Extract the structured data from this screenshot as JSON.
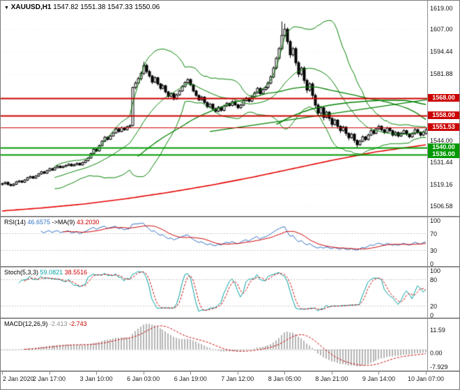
{
  "main": {
    "menu_icon": "▼",
    "symbol_label": "XAUUSD,H1",
    "ohlc_text": "1547.82 1551.38 1547.33 1550.06",
    "ylim": [
      1502,
      1622
    ],
    "y_ticks": [
      "1619.00",
      "1607.00",
      "1594.44",
      "1581.88",
      "1544.00",
      "1531.44",
      "1519.16",
      "1506.58"
    ],
    "price_lines": [
      {
        "label": "1568.00",
        "value": 1568.0,
        "color": "#cc0000",
        "width": 2
      },
      {
        "label": "1558.00",
        "value": 1558.0,
        "color": "#cc0000",
        "width": 2
      },
      {
        "label": "1551.53",
        "value": 1551.53,
        "color": "#cc0000",
        "width": 1
      },
      {
        "label": "1540.00",
        "value": 1540.0,
        "color": "#009900",
        "width": 2
      },
      {
        "label": "1536.00",
        "value": 1536.0,
        "color": "#009900",
        "width": 2
      }
    ]
  },
  "panels": {
    "rsi": {
      "label": "RSI(14)",
      "value": "46.6575",
      "ma_label": "->MA(9)",
      "ma_value": "43.2030",
      "axis": [
        "100",
        "70",
        "30",
        "0"
      ],
      "levels": [
        70,
        30
      ],
      "range": [
        0,
        100
      ]
    },
    "stoch": {
      "label": "Stoch(5,3,3)",
      "k_value": "59.0821",
      "d_value": "38.5516",
      "axis": [
        "100",
        "80",
        "20",
        "0"
      ],
      "levels": [
        80,
        20
      ],
      "range": [
        0,
        100
      ]
    },
    "macd": {
      "label": "MACD(12,26,9)",
      "value": "-2.413",
      "signal_value": "-2.743",
      "axis": [
        "11.59",
        "0.00",
        "-7.929"
      ]
    }
  },
  "time_axis": {
    "labels": [
      "2 Jan 2020",
      "2 Jan 17:00",
      "3 Jan 10:00",
      "6 Jan 03:00",
      "6 Jan 19:00",
      "7 Jan 12:00",
      "8 Jan 05:00",
      "8 Jan 21:00",
      "9 Jan 14:00",
      "10 Jan 07:00"
    ],
    "bars_per_tick": 17
  },
  "colors": {
    "bull": "#ffffff",
    "bear": "#000000",
    "wick": "#000000",
    "band": "#008000",
    "rsi": "#2f6fc2",
    "rsi_ma": "#cc0000",
    "stoch_k": "#00a0a0",
    "stoch_d": "#cc0000",
    "macd_hist": "#b4b4b4",
    "macd_signal": "#cc0000",
    "grid": "#ededed",
    "level": "#c8c8c8"
  },
  "chart_data": {
    "type": "candlestick",
    "symbol": "XAUUSD",
    "timeframe": "H1",
    "title": "XAUUSD,H1 1547.82 1551.38 1547.33 1550.06",
    "ylim": [
      1502,
      1622
    ],
    "current_bar": {
      "open": 1547.82,
      "high": 1551.38,
      "low": 1547.33,
      "close": 1550.06
    },
    "candles": [
      [
        1519.0,
        1520.1,
        1518.4,
        1519.5
      ],
      [
        1519.5,
        1520.8,
        1518.9,
        1520.2
      ],
      [
        1520.2,
        1520.8,
        1518.4,
        1519.0
      ],
      [
        1519.0,
        1519.6,
        1517.8,
        1518.4
      ],
      [
        1518.4,
        1519.8,
        1517.9,
        1519.2
      ],
      [
        1519.2,
        1521.1,
        1518.7,
        1520.5
      ],
      [
        1520.5,
        1521.6,
        1520.0,
        1521.0
      ],
      [
        1521.0,
        1521.5,
        1519.8,
        1520.3
      ],
      [
        1520.3,
        1522.1,
        1519.9,
        1521.5
      ],
      [
        1521.5,
        1523.4,
        1521.0,
        1522.8
      ],
      [
        1522.8,
        1524.1,
        1522.3,
        1523.5
      ],
      [
        1523.5,
        1524.0,
        1522.1,
        1522.6
      ],
      [
        1522.6,
        1524.4,
        1522.2,
        1523.8
      ],
      [
        1523.8,
        1525.6,
        1523.3,
        1525.0
      ],
      [
        1525.0,
        1526.8,
        1524.5,
        1526.2
      ],
      [
        1526.2,
        1526.7,
        1524.9,
        1525.4
      ],
      [
        1525.4,
        1527.4,
        1525.0,
        1526.8
      ],
      [
        1526.8,
        1528.6,
        1526.3,
        1528.0
      ],
      [
        1528.0,
        1528.5,
        1526.7,
        1527.2
      ],
      [
        1527.2,
        1529.1,
        1526.8,
        1528.5
      ],
      [
        1528.5,
        1530.0,
        1528.1,
        1529.4
      ],
      [
        1529.4,
        1529.9,
        1528.1,
        1528.6
      ],
      [
        1528.6,
        1529.8,
        1528.2,
        1529.2
      ],
      [
        1529.2,
        1530.4,
        1528.8,
        1529.8
      ],
      [
        1529.8,
        1531.1,
        1529.4,
        1530.5
      ],
      [
        1530.5,
        1531.0,
        1529.1,
        1529.6
      ],
      [
        1529.6,
        1530.8,
        1529.2,
        1530.2
      ],
      [
        1530.2,
        1531.6,
        1529.8,
        1531.0
      ],
      [
        1531.0,
        1531.5,
        1529.6,
        1530.1
      ],
      [
        1530.1,
        1532.0,
        1529.7,
        1531.4
      ],
      [
        1531.4,
        1533.1,
        1531.0,
        1532.5
      ],
      [
        1532.5,
        1534.6,
        1532.1,
        1534.0
      ],
      [
        1534.0,
        1537.1,
        1533.6,
        1536.5
      ],
      [
        1536.5,
        1539.6,
        1536.1,
        1539.0
      ],
      [
        1539.0,
        1539.6,
        1537.4,
        1538.0
      ],
      [
        1538.0,
        1541.7,
        1537.6,
        1541.0
      ],
      [
        1541.0,
        1544.2,
        1540.6,
        1543.5
      ],
      [
        1543.5,
        1546.5,
        1543.1,
        1545.8
      ],
      [
        1545.8,
        1546.3,
        1543.9,
        1544.6
      ],
      [
        1544.6,
        1547.2,
        1544.2,
        1546.5
      ],
      [
        1546.5,
        1548.9,
        1546.1,
        1548.2
      ],
      [
        1548.2,
        1551.2,
        1547.8,
        1550.5
      ],
      [
        1550.5,
        1551.0,
        1548.4,
        1549.0
      ],
      [
        1549.0,
        1551.9,
        1548.6,
        1551.2
      ],
      [
        1551.2,
        1551.7,
        1549.4,
        1550.0
      ],
      [
        1550.0,
        1552.4,
        1549.6,
        1551.8
      ],
      [
        1551.8,
        1553.1,
        1551.3,
        1552.4
      ],
      [
        1552.4,
        1574.5,
        1551.9,
        1574.0
      ],
      [
        1574.0,
        1577.6,
        1573.0,
        1576.5
      ],
      [
        1576.5,
        1580.1,
        1575.5,
        1579.0
      ],
      [
        1579.0,
        1583.1,
        1578.0,
        1582.0
      ],
      [
        1582.0,
        1588.6,
        1581.0,
        1586.5
      ],
      [
        1586.5,
        1587.5,
        1581.9,
        1583.0
      ],
      [
        1583.0,
        1584.0,
        1579.4,
        1580.5
      ],
      [
        1580.5,
        1581.1,
        1576.0,
        1577.0
      ],
      [
        1577.0,
        1580.4,
        1576.4,
        1579.5
      ],
      [
        1579.5,
        1580.1,
        1575.0,
        1576.0
      ],
      [
        1576.0,
        1576.6,
        1572.5,
        1573.5
      ],
      [
        1573.5,
        1575.9,
        1572.9,
        1575.0
      ],
      [
        1575.0,
        1575.6,
        1570.6,
        1571.5
      ],
      [
        1571.5,
        1572.1,
        1568.1,
        1569.0
      ],
      [
        1569.0,
        1571.3,
        1568.4,
        1570.5
      ],
      [
        1570.5,
        1571.1,
        1566.6,
        1567.5
      ],
      [
        1567.5,
        1570.6,
        1567.0,
        1569.8
      ],
      [
        1569.8,
        1572.8,
        1569.2,
        1572.0
      ],
      [
        1572.0,
        1575.3,
        1571.5,
        1574.5
      ],
      [
        1574.5,
        1577.6,
        1574.0,
        1576.8
      ],
      [
        1576.8,
        1579.3,
        1576.2,
        1578.5
      ],
      [
        1578.5,
        1579.1,
        1574.7,
        1575.5
      ],
      [
        1575.5,
        1576.1,
        1571.2,
        1572.0
      ],
      [
        1572.0,
        1572.6,
        1568.7,
        1569.5
      ],
      [
        1569.5,
        1570.1,
        1566.2,
        1567.0
      ],
      [
        1567.0,
        1569.3,
        1566.4,
        1568.5
      ],
      [
        1568.5,
        1569.1,
        1564.7,
        1565.5
      ],
      [
        1565.5,
        1566.1,
        1562.2,
        1563.0
      ],
      [
        1563.0,
        1565.3,
        1562.4,
        1564.5
      ],
      [
        1564.5,
        1565.1,
        1561.2,
        1562.0
      ],
      [
        1562.0,
        1562.6,
        1559.7,
        1560.5
      ],
      [
        1560.5,
        1563.6,
        1559.9,
        1562.8
      ],
      [
        1562.8,
        1563.4,
        1560.2,
        1561.0
      ],
      [
        1561.0,
        1564.3,
        1560.4,
        1563.5
      ],
      [
        1563.5,
        1565.8,
        1563.0,
        1565.0
      ],
      [
        1565.0,
        1565.6,
        1563.0,
        1563.8
      ],
      [
        1563.8,
        1566.8,
        1563.2,
        1566.0
      ],
      [
        1566.0,
        1566.6,
        1563.4,
        1564.2
      ],
      [
        1564.2,
        1564.8,
        1561.7,
        1562.5
      ],
      [
        1562.5,
        1564.8,
        1561.9,
        1564.0
      ],
      [
        1564.0,
        1567.3,
        1563.4,
        1566.5
      ],
      [
        1566.5,
        1568.8,
        1566.0,
        1568.0
      ],
      [
        1568.0,
        1568.6,
        1565.4,
        1566.2
      ],
      [
        1566.2,
        1569.6,
        1565.6,
        1568.8
      ],
      [
        1568.8,
        1571.8,
        1568.2,
        1571.0
      ],
      [
        1571.0,
        1574.3,
        1570.4,
        1573.5
      ],
      [
        1573.5,
        1574.1,
        1569.7,
        1570.5
      ],
      [
        1570.5,
        1573.6,
        1569.9,
        1572.8
      ],
      [
        1572.8,
        1574.8,
        1572.2,
        1574.0
      ],
      [
        1574.0,
        1577.5,
        1573.2,
        1576.5
      ],
      [
        1576.5,
        1581.0,
        1575.7,
        1580.0
      ],
      [
        1580.0,
        1586.0,
        1579.2,
        1585.0
      ],
      [
        1585.0,
        1591.5,
        1584.2,
        1590.5
      ],
      [
        1590.5,
        1597.0,
        1589.7,
        1596.0
      ],
      [
        1596.0,
        1611.4,
        1595.2,
        1603.5
      ],
      [
        1603.5,
        1610.2,
        1602.0,
        1607.0
      ],
      [
        1607.0,
        1608.0,
        1598.5,
        1600.0
      ],
      [
        1600.0,
        1601.0,
        1590.8,
        1592.5
      ],
      [
        1592.5,
        1597.0,
        1591.5,
        1596.0
      ],
      [
        1596.0,
        1597.0,
        1586.3,
        1588.0
      ],
      [
        1588.0,
        1589.0,
        1579.8,
        1581.5
      ],
      [
        1581.5,
        1586.0,
        1580.5,
        1585.0
      ],
      [
        1585.0,
        1586.0,
        1576.3,
        1578.0
      ],
      [
        1578.0,
        1579.0,
        1570.8,
        1572.5
      ],
      [
        1572.5,
        1577.0,
        1571.5,
        1576.0
      ],
      [
        1576.0,
        1577.0,
        1567.8,
        1569.5
      ],
      [
        1569.5,
        1570.5,
        1562.3,
        1564.0
      ],
      [
        1564.0,
        1565.0,
        1557.8,
        1559.5
      ],
      [
        1559.5,
        1563.5,
        1558.5,
        1562.5
      ],
      [
        1562.5,
        1563.1,
        1555.3,
        1557.0
      ],
      [
        1557.0,
        1560.9,
        1556.4,
        1560.0
      ],
      [
        1560.0,
        1560.6,
        1555.0,
        1556.5
      ],
      [
        1556.5,
        1557.1,
        1551.6,
        1553.0
      ],
      [
        1553.0,
        1556.4,
        1552.4,
        1555.5
      ],
      [
        1555.5,
        1556.1,
        1550.6,
        1552.0
      ],
      [
        1552.0,
        1552.6,
        1548.1,
        1549.5
      ],
      [
        1549.5,
        1552.4,
        1548.9,
        1551.5
      ],
      [
        1551.5,
        1552.1,
        1546.6,
        1548.0
      ],
      [
        1548.0,
        1548.6,
        1544.1,
        1545.5
      ],
      [
        1545.5,
        1548.4,
        1544.9,
        1547.5
      ],
      [
        1547.5,
        1548.1,
        1542.6,
        1544.0
      ],
      [
        1544.0,
        1544.6,
        1539.9,
        1541.5
      ],
      [
        1541.5,
        1544.4,
        1540.9,
        1543.5
      ],
      [
        1543.5,
        1546.9,
        1542.9,
        1546.0
      ],
      [
        1546.0,
        1546.6,
        1543.6,
        1544.5
      ],
      [
        1544.5,
        1547.9,
        1543.9,
        1547.0
      ],
      [
        1547.0,
        1550.4,
        1546.4,
        1549.5
      ],
      [
        1549.5,
        1550.1,
        1547.1,
        1548.0
      ],
      [
        1548.0,
        1551.4,
        1547.4,
        1550.5
      ],
      [
        1550.5,
        1552.9,
        1549.9,
        1552.0
      ],
      [
        1552.0,
        1552.6,
        1549.1,
        1550.0
      ],
      [
        1550.0,
        1550.6,
        1547.6,
        1548.5
      ],
      [
        1548.5,
        1551.9,
        1547.9,
        1551.0
      ],
      [
        1551.0,
        1551.6,
        1548.6,
        1549.5
      ],
      [
        1549.5,
        1550.1,
        1546.1,
        1547.0
      ],
      [
        1547.0,
        1549.4,
        1546.4,
        1548.5
      ],
      [
        1548.5,
        1549.1,
        1545.6,
        1546.5
      ],
      [
        1546.5,
        1548.9,
        1545.9,
        1548.0
      ],
      [
        1548.0,
        1550.4,
        1547.4,
        1549.5
      ],
      [
        1549.5,
        1550.1,
        1546.6,
        1547.5
      ],
      [
        1547.5,
        1548.1,
        1545.1,
        1546.0
      ],
      [
        1546.0,
        1548.7,
        1545.4,
        1547.8
      ],
      [
        1547.8,
        1550.9,
        1547.2,
        1550.1
      ],
      [
        1550.1,
        1550.7,
        1547.6,
        1548.5
      ],
      [
        1548.5,
        1549.1,
        1546.1,
        1547.0
      ],
      [
        1547.0,
        1549.6,
        1546.4,
        1548.8
      ],
      [
        1547.82,
        1551.38,
        1547.33,
        1550.06
      ]
    ],
    "overlays": {
      "bollinger": {
        "period": 20,
        "deviation": 2,
        "color": "#008000"
      },
      "sma50": {
        "period": 50,
        "color": "#008000"
      },
      "sma100": {
        "period": 100,
        "color": "#008000"
      },
      "trendline": {
        "from_bar": 75,
        "from_price": 1549,
        "to_bar": 153,
        "to_price": 1567,
        "color": "#008000"
      },
      "slow_ma_red": {
        "color": "#e60000",
        "bars": [
          0,
          15,
          30,
          45,
          60,
          75,
          90,
          105,
          120,
          135,
          153
        ],
        "values": [
          1504,
          1505.8,
          1508,
          1511,
          1514.5,
          1518.5,
          1523,
          1528,
          1533,
          1537.5,
          1541.5
        ]
      }
    },
    "indicators": {
      "rsi": {
        "period": 14,
        "ma_period": 9,
        "current": 46.6575,
        "ma_current": 43.203
      },
      "stoch": {
        "k": 5,
        "d": 3,
        "slowing": 3,
        "current_k": 59.0821,
        "current_d": 38.5516
      },
      "macd": {
        "fast": 12,
        "slow": 26,
        "signal": 9,
        "current": -2.413,
        "signal_current": -2.743
      }
    }
  }
}
